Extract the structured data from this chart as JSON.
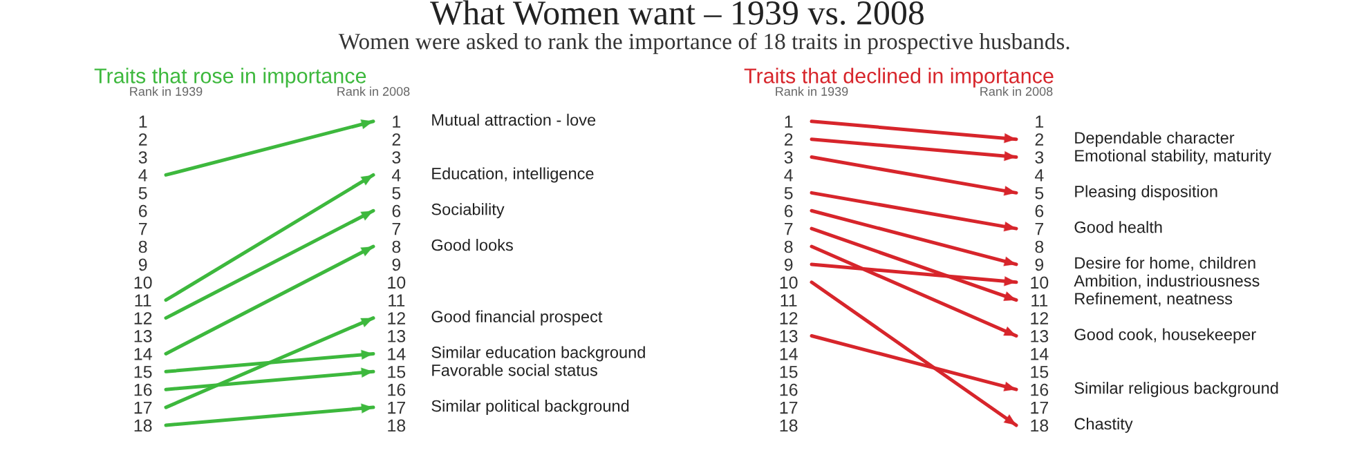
{
  "chart_data": [
    {
      "type": "line",
      "title": "Traits that rose in importance",
      "annotations": [
        "What Women want – 1939 vs. 2008",
        "Women were asked to rank the importance of 18 traits in prospective husbands."
      ],
      "categories": [
        "Rank in 1939",
        "Rank in 2008"
      ],
      "ylim": [
        18,
        1
      ],
      "yticks": [
        1,
        2,
        3,
        4,
        5,
        6,
        7,
        8,
        9,
        10,
        11,
        12,
        13,
        14,
        15,
        16,
        17,
        18
      ],
      "y2lim": [
        18,
        1
      ],
      "y2ticks": [
        1,
        2,
        3,
        4,
        5,
        6,
        7,
        8,
        9,
        10,
        11,
        12,
        13,
        14,
        15,
        16,
        17,
        18
      ],
      "grid": false,
      "legend": false,
      "marker": "triangle",
      "line_style": "solid",
      "series": [
        {
          "name": "Mutual attraction - love",
          "color": "#3db83d",
          "values": [
            4,
            1
          ]
        },
        {
          "name": "Education, intelligence",
          "color": "#3db83d",
          "values": [
            11,
            4
          ]
        },
        {
          "name": "Sociability",
          "color": "#3db83d",
          "values": [
            12,
            6
          ]
        },
        {
          "name": "Good looks",
          "color": "#3db83d",
          "values": [
            14,
            8
          ]
        },
        {
          "name": "Good financial prospect",
          "color": "#3db83d",
          "values": [
            17,
            12
          ]
        },
        {
          "name": "Similar education background",
          "color": "#3db83d",
          "values": [
            15,
            14
          ]
        },
        {
          "name": "Favorable social status",
          "color": "#3db83d",
          "values": [
            16,
            15
          ]
        },
        {
          "name": "Similar political background",
          "color": "#3db83d",
          "values": [
            18,
            17
          ]
        }
      ]
    },
    {
      "type": "line",
      "title": "Traits that declined in importance",
      "categories": [
        "Rank in 1939",
        "Rank in 2008"
      ],
      "ylim": [
        18,
        1
      ],
      "yticks": [
        1,
        2,
        3,
        4,
        5,
        6,
        7,
        8,
        9,
        10,
        11,
        12,
        13,
        14,
        15,
        16,
        17,
        18
      ],
      "y2lim": [
        18,
        1
      ],
      "y2ticks": [
        1,
        2,
        3,
        4,
        5,
        6,
        7,
        8,
        9,
        10,
        11,
        12,
        13,
        14,
        15,
        16,
        17,
        18
      ],
      "grid": false,
      "legend": false,
      "marker": "triangle",
      "line_style": "solid",
      "series": [
        {
          "name": "Dependable character",
          "color": "#d7252b",
          "values": [
            1,
            2
          ]
        },
        {
          "name": "Emotional stability, maturity",
          "color": "#d7252b",
          "values": [
            2,
            3
          ]
        },
        {
          "name": "Pleasing disposition",
          "color": "#d7252b",
          "values": [
            3,
            5
          ]
        },
        {
          "name": "Good health",
          "color": "#d7252b",
          "values": [
            5,
            7
          ]
        },
        {
          "name": "Desire for home, children",
          "color": "#d7252b",
          "values": [
            6,
            9
          ]
        },
        {
          "name": "Ambition, industriousness",
          "color": "#d7252b",
          "values": [
            9,
            10
          ]
        },
        {
          "name": "Refinement, neatness",
          "color": "#d7252b",
          "values": [
            7,
            11
          ]
        },
        {
          "name": "Good cook, housekeeper",
          "color": "#d7252b",
          "values": [
            8,
            13
          ]
        },
        {
          "name": "Similar religious background",
          "color": "#d7252b",
          "values": [
            13,
            16
          ]
        },
        {
          "name": "Chastity",
          "color": "#d7252b",
          "values": [
            10,
            18
          ]
        }
      ]
    }
  ]
}
